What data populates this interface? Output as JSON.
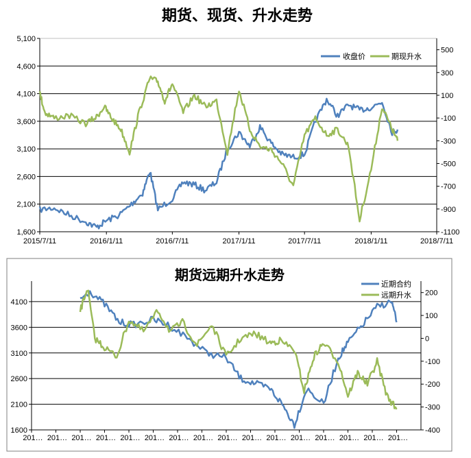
{
  "chart_data": [
    {
      "type": "line",
      "title": "期货、现货、升水走势",
      "xlabel": "",
      "ylabel": "",
      "x_ticks": [
        "2015/7/11",
        "2016/1/11",
        "2016/7/11",
        "2017/1/11",
        "2017/7/11",
        "2018/1/11",
        "2018/7/11"
      ],
      "xlim": [
        "2015/7/11",
        "2018/7/11"
      ],
      "y_left_ticks": [
        "1,600",
        "2,100",
        "2,600",
        "3,100",
        "3,600",
        "4,100",
        "4,600",
        "5,100"
      ],
      "ylim_left": [
        1600,
        5100
      ],
      "y_right_ticks": [
        "-1100",
        "-900",
        "-700",
        "-500",
        "-300",
        "-100",
        "100",
        "300",
        "500"
      ],
      "ylim_right": [
        -1100,
        600
      ],
      "grid": "horizontal",
      "legend": "top-right",
      "series": [
        {
          "name": "收盘价",
          "axis": "left",
          "color": "#4f81bd",
          "x": [
            "2015/7/11",
            "2015/8/20",
            "2015/10/1",
            "2015/11/15",
            "2015/12/15",
            "2016/1/11",
            "2016/2/15",
            "2016/3/20",
            "2016/4/20",
            "2016/5/10",
            "2016/6/1",
            "2016/7/11",
            "2016/8/10",
            "2016/9/10",
            "2016/10/10",
            "2016/11/10",
            "2016/12/10",
            "2017/1/11",
            "2017/2/10",
            "2017/3/10",
            "2017/4/10",
            "2017/5/10",
            "2017/6/10",
            "2017/7/11",
            "2017/8/10",
            "2017/9/10",
            "2017/10/10",
            "2017/11/10",
            "2017/12/10",
            "2018/1/11",
            "2018/2/10",
            "2018/3/10",
            "2018/3/25"
          ],
          "values": [
            2000,
            2030,
            1900,
            1780,
            1680,
            1800,
            1900,
            2100,
            2300,
            2700,
            2000,
            2200,
            2500,
            2450,
            2350,
            2500,
            3100,
            3400,
            3150,
            3500,
            3200,
            3000,
            2950,
            3000,
            3600,
            4000,
            3700,
            3900,
            3800,
            3850,
            3950,
            3400,
            3450
          ]
        },
        {
          "name": "期现升水",
          "axis": "right",
          "color": "#9bbb59",
          "x": [
            "2015/7/11",
            "2015/7/25",
            "2015/8/20",
            "2015/10/1",
            "2015/11/15",
            "2015/12/15",
            "2016/1/5",
            "2016/1/25",
            "2016/2/20",
            "2016/3/15",
            "2016/4/10",
            "2016/5/10",
            "2016/6/1",
            "2016/6/20",
            "2016/7/11",
            "2016/8/10",
            "2016/9/10",
            "2016/10/10",
            "2016/11/10",
            "2016/12/10",
            "2017/1/11",
            "2017/2/10",
            "2017/3/10",
            "2017/4/10",
            "2017/5/10",
            "2017/6/10",
            "2017/7/11",
            "2017/8/10",
            "2017/9/10",
            "2017/10/10",
            "2017/11/10",
            "2017/12/10",
            "2018/1/11",
            "2018/2/10",
            "2018/3/10",
            "2018/3/25"
          ],
          "values": [
            120,
            -50,
            -100,
            -80,
            -150,
            -90,
            0,
            -100,
            -200,
            -400,
            -50,
            250,
            220,
            50,
            200,
            -50,
            100,
            0,
            50,
            -400,
            150,
            -200,
            -350,
            -380,
            -500,
            -700,
            -250,
            -100,
            -250,
            -200,
            -350,
            -1000,
            -550,
            0,
            -200,
            -300
          ]
        }
      ]
    },
    {
      "type": "line",
      "title": "期货远期升水走势",
      "xlabel": "",
      "ylabel": "",
      "x_ticks": [
        "201…",
        "201…",
        "201…",
        "201…",
        "201…",
        "201…",
        "201…",
        "201…",
        "201…",
        "201…",
        "201…",
        "201…",
        "201…",
        "201…",
        "201…",
        "201…"
      ],
      "y_left_ticks": [
        "1600",
        "2100",
        "2600",
        "3100",
        "3600",
        "4100"
      ],
      "ylim_left": [
        1600,
        4500
      ],
      "y_right_ticks": [
        "-400",
        "-300",
        "-200",
        "-100",
        "0",
        "100",
        "200"
      ],
      "ylim_right": [
        -400,
        250
      ],
      "grid": "horizontal",
      "legend": "top-right",
      "series": [
        {
          "name": "近期合约",
          "axis": "left",
          "color": "#4f81bd",
          "x": [
            2.0,
            2.4,
            3.0,
            3.6,
            4.2,
            5.0,
            5.6,
            6.4,
            7.2,
            8.0,
            8.6,
            9.2,
            9.8,
            10.3,
            10.8,
            11.3,
            12.0,
            12.6,
            13.0,
            13.6,
            14.2,
            14.8,
            15.0
          ],
          "values": [
            4150,
            4300,
            4050,
            3700,
            3650,
            3750,
            3650,
            3400,
            3100,
            3000,
            2600,
            2500,
            2400,
            2100,
            1700,
            2400,
            2100,
            3000,
            3300,
            3650,
            4000,
            4100,
            3700
          ]
        },
        {
          "name": "远期升水",
          "axis": "right",
          "color": "#9bbb59",
          "x": [
            2.0,
            2.3,
            2.6,
            3.0,
            3.5,
            4.0,
            4.6,
            5.2,
            5.7,
            6.2,
            6.8,
            7.4,
            8.0,
            8.6,
            9.2,
            9.8,
            10.2,
            10.8,
            11.2,
            11.6,
            12.0,
            12.6,
            13.0,
            13.4,
            13.8,
            14.2,
            14.6,
            15.0
          ],
          "values": [
            120,
            220,
            0,
            -40,
            -80,
            80,
            30,
            120,
            30,
            70,
            -30,
            60,
            -80,
            0,
            20,
            -20,
            -10,
            -50,
            -230,
            -80,
            -20,
            -100,
            -250,
            -150,
            -200,
            -100,
            -250,
            -310
          ]
        }
      ]
    }
  ]
}
